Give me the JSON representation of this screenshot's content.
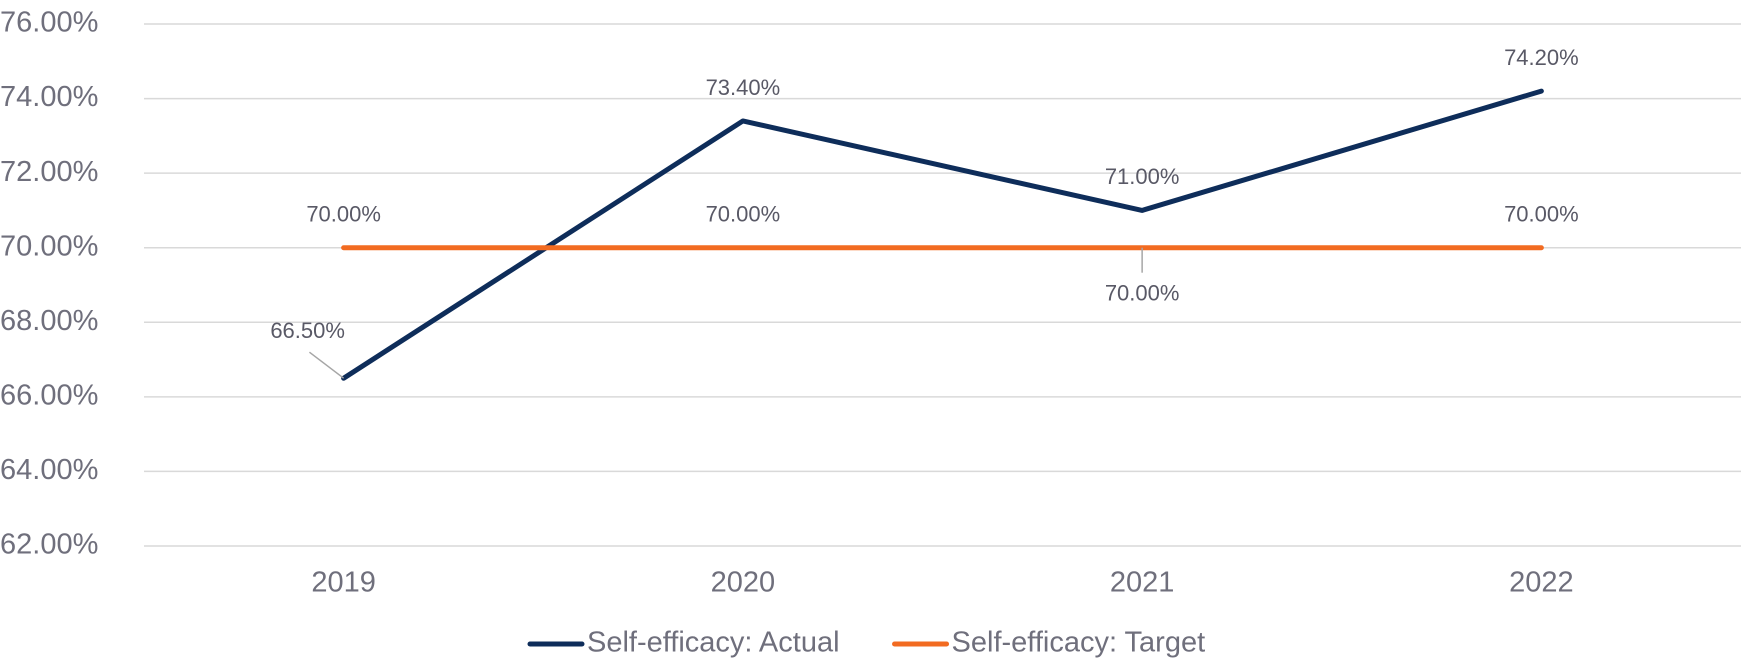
{
  "chart_data": {
    "type": "line",
    "categories": [
      "2019",
      "2020",
      "2021",
      "2022"
    ],
    "series": [
      {
        "name": "Self-efficacy: Actual",
        "color": "#0e2d5a",
        "values": [
          66.5,
          73.4,
          71.0,
          74.2
        ],
        "value_labels": [
          "66.50%",
          "73.40%",
          "71.00%",
          "74.20%"
        ]
      },
      {
        "name": "Self-efficacy: Target",
        "color": "#f26b21",
        "values": [
          70.0,
          70.0,
          70.0,
          70.0
        ],
        "value_labels": [
          "70.00%",
          "70.00%",
          "70.00%",
          "70.00%"
        ]
      }
    ],
    "ylim": [
      62,
      76
    ],
    "yticks": [
      {
        "value": 62,
        "label": "62.00%"
      },
      {
        "value": 64,
        "label": "64.00%"
      },
      {
        "value": 66,
        "label": "66.00%"
      },
      {
        "value": 68,
        "label": "68.00%"
      },
      {
        "value": 70,
        "label": "70.00%"
      },
      {
        "value": 72,
        "label": "72.00%"
      },
      {
        "value": 74,
        "label": "74.00%"
      },
      {
        "value": 76,
        "label": "76.00%"
      }
    ],
    "grid": true,
    "legend": "bottom"
  }
}
